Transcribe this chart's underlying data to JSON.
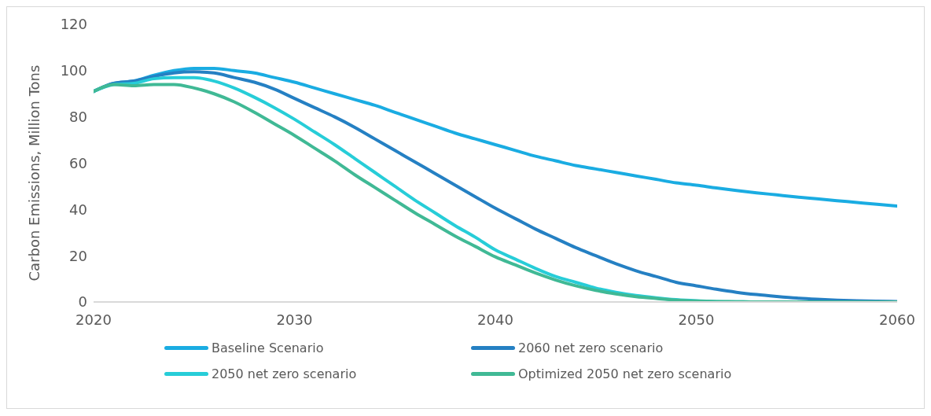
{
  "chart_data": {
    "type": "line",
    "ylabel": "Carbon Emissions, Million Tons",
    "x": [
      2020,
      2021,
      2022,
      2023,
      2024,
      2025,
      2026,
      2027,
      2028,
      2029,
      2030,
      2031,
      2032,
      2033,
      2034,
      2035,
      2036,
      2037,
      2038,
      2039,
      2040,
      2041,
      2042,
      2043,
      2044,
      2045,
      2046,
      2047,
      2048,
      2049,
      2050,
      2051,
      2052,
      2053,
      2054,
      2055,
      2056,
      2057,
      2058,
      2059,
      2060
    ],
    "series": [
      {
        "name": "Baseline Scenario",
        "color": "#1aace2",
        "values": [
          91,
          94.5,
          95.5,
          98,
          100,
          101,
          101,
          100,
          99,
          97,
          95,
          92.5,
          90,
          87.5,
          85,
          82,
          79,
          76,
          73,
          70.5,
          68,
          65.5,
          63,
          61,
          59,
          57.5,
          56,
          54.5,
          53,
          51.5,
          50.5,
          49.3,
          48.2,
          47.2,
          46.3,
          45.4,
          44.6,
          43.8,
          43,
          42.2,
          41.5
        ]
      },
      {
        "name": "2060 net zero scenario",
        "color": "#2580c3",
        "values": [
          91,
          94.5,
          95.5,
          97.5,
          99,
          99.5,
          99,
          97,
          95,
          92,
          88,
          84,
          80,
          75.5,
          70.5,
          65.5,
          60.5,
          55.5,
          50.5,
          45.5,
          40.5,
          36,
          31.5,
          27.5,
          23.5,
          20,
          16.5,
          13.5,
          11,
          8.5,
          7,
          5.5,
          4.2,
          3.2,
          2.4,
          1.7,
          1.2,
          0.8,
          0.5,
          0.3,
          0.2
        ]
      },
      {
        "name": "2050 net zero scenario",
        "color": "#27cdd8",
        "values": [
          91,
          94,
          94.5,
          96.5,
          97,
          97,
          95.5,
          92.5,
          88.5,
          84,
          79,
          73.5,
          68,
          62,
          56,
          50,
          44,
          38.5,
          33,
          28,
          22.5,
          18.5,
          14.5,
          11,
          8.5,
          6,
          4.2,
          2.8,
          1.8,
          1,
          0.5,
          0.2,
          0.1,
          0,
          0,
          null,
          null,
          null,
          null,
          null,
          null
        ]
      },
      {
        "name": "Optimized 2050 net zero scenario",
        "color": "#40b995",
        "values": [
          91,
          94,
          93.5,
          94,
          94,
          92.5,
          90,
          86.5,
          82,
          77,
          72,
          66.5,
          61,
          55,
          49.5,
          44,
          38.5,
          33.5,
          28.5,
          24,
          19.5,
          16,
          12.5,
          9.5,
          7,
          5,
          3.5,
          2.3,
          1.5,
          0.8,
          0.4,
          0.2,
          0.1,
          0,
          0,
          0,
          0,
          0,
          0,
          0,
          0
        ]
      }
    ],
    "xlim": [
      2020,
      2060
    ],
    "xticks": [
      2020,
      2030,
      2040,
      2050,
      2060
    ],
    "ylim": [
      0,
      120
    ],
    "yticks": [
      0,
      20,
      40,
      60,
      80,
      100,
      120
    ],
    "grid": false,
    "legend": "bottom",
    "marker": "none",
    "line_style": "solid"
  }
}
